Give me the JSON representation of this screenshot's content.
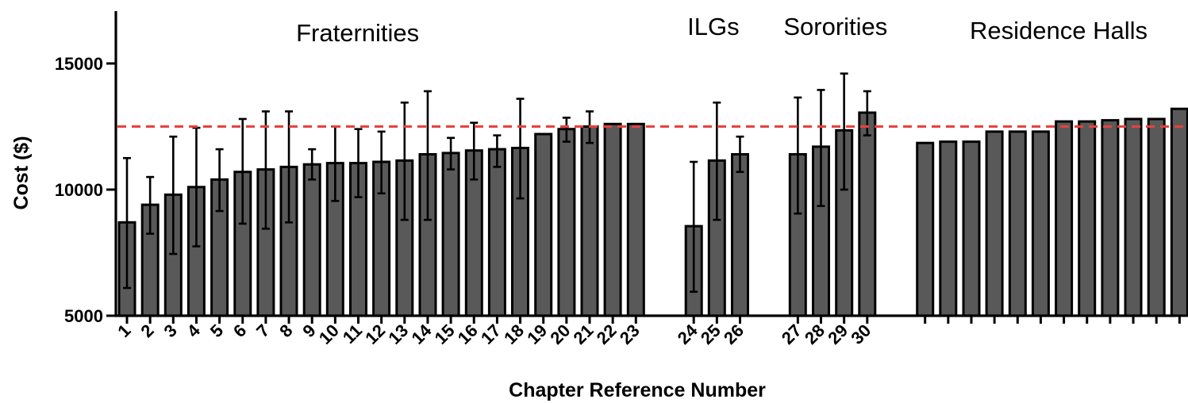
{
  "chart_data": {
    "type": "bar",
    "xlabel": "Chapter Reference Number",
    "ylabel": "Cost  ($)",
    "ylim": [
      5000,
      17000
    ],
    "yticks": [
      5000,
      10000,
      15000
    ],
    "reference_line": {
      "value": 12500,
      "color": "#e8413c",
      "style": "dashed"
    },
    "bar_color": "#595959",
    "groups": [
      {
        "name": "Fraternities",
        "bars": [
          {
            "label": "1",
            "value": 8700,
            "err_low": 6100,
            "err_high": 11250
          },
          {
            "label": "2",
            "value": 9400,
            "err_low": 8250,
            "err_high": 10500
          },
          {
            "label": "3",
            "value": 9800,
            "err_low": 7450,
            "err_high": 12100
          },
          {
            "label": "4",
            "value": 10100,
            "err_low": 7750,
            "err_high": 12450
          },
          {
            "label": "5",
            "value": 10400,
            "err_low": 9150,
            "err_high": 11600
          },
          {
            "label": "6",
            "value": 10700,
            "err_low": 8650,
            "err_high": 12800
          },
          {
            "label": "7",
            "value": 10800,
            "err_low": 8450,
            "err_high": 13100
          },
          {
            "label": "8",
            "value": 10900,
            "err_low": 8700,
            "err_high": 13100
          },
          {
            "label": "9",
            "value": 11000,
            "err_low": 10400,
            "err_high": 11600
          },
          {
            "label": "10",
            "value": 11050,
            "err_low": 9550,
            "err_high": 12500
          },
          {
            "label": "11",
            "value": 11050,
            "err_low": 9700,
            "err_high": 12400
          },
          {
            "label": "12",
            "value": 11100,
            "err_low": 9850,
            "err_high": 12300
          },
          {
            "label": "13",
            "value": 11150,
            "err_low": 8800,
            "err_high": 13450
          },
          {
            "label": "14",
            "value": 11400,
            "err_low": 8800,
            "err_high": 13900
          },
          {
            "label": "15",
            "value": 11450,
            "err_low": 10800,
            "err_high": 12050
          },
          {
            "label": "16",
            "value": 11550,
            "err_low": 10400,
            "err_high": 12650
          },
          {
            "label": "17",
            "value": 11600,
            "err_low": 10900,
            "err_high": 12150
          },
          {
            "label": "18",
            "value": 11650,
            "err_low": 9650,
            "err_high": 13600
          },
          {
            "label": "19",
            "value": 12200,
            "err_low": null,
            "err_high": null
          },
          {
            "label": "20",
            "value": 12400,
            "err_low": 11900,
            "err_high": 12850
          },
          {
            "label": "21",
            "value": 12500,
            "err_low": 11850,
            "err_high": 13100
          },
          {
            "label": "22",
            "value": 12600,
            "err_low": null,
            "err_high": null
          },
          {
            "label": "23",
            "value": 12600,
            "err_low": null,
            "err_high": null
          }
        ]
      },
      {
        "name": "ILGs",
        "bars": [
          {
            "label": "24",
            "value": 8550,
            "err_low": 5950,
            "err_high": 11100
          },
          {
            "label": "25",
            "value": 11150,
            "err_low": 8800,
            "err_high": 13450
          },
          {
            "label": "26",
            "value": 11400,
            "err_low": 10700,
            "err_high": 12100
          }
        ]
      },
      {
        "name": "Sororities",
        "bars": [
          {
            "label": "27",
            "value": 11400,
            "err_low": 9050,
            "err_high": 13650
          },
          {
            "label": "28",
            "value": 11700,
            "err_low": 9350,
            "err_high": 13950
          },
          {
            "label": "29",
            "value": 12350,
            "err_low": 10000,
            "err_high": 14600
          },
          {
            "label": "30",
            "value": 13050,
            "err_low": 12150,
            "err_high": 13900
          }
        ]
      },
      {
        "name": "Residence Halls",
        "bars": [
          {
            "label": "",
            "value": 11850,
            "err_low": null,
            "err_high": null
          },
          {
            "label": "",
            "value": 11900,
            "err_low": null,
            "err_high": null
          },
          {
            "label": "",
            "value": 11900,
            "err_low": null,
            "err_high": null
          },
          {
            "label": "",
            "value": 12300,
            "err_low": null,
            "err_high": null
          },
          {
            "label": "",
            "value": 12300,
            "err_low": null,
            "err_high": null
          },
          {
            "label": "",
            "value": 12300,
            "err_low": null,
            "err_high": null
          },
          {
            "label": "",
            "value": 12700,
            "err_low": null,
            "err_high": null
          },
          {
            "label": "",
            "value": 12700,
            "err_low": null,
            "err_high": null
          },
          {
            "label": "",
            "value": 12750,
            "err_low": null,
            "err_high": null
          },
          {
            "label": "",
            "value": 12800,
            "err_low": null,
            "err_high": null
          },
          {
            "label": "",
            "value": 12800,
            "err_low": null,
            "err_high": null
          },
          {
            "label": "",
            "value": 13200,
            "err_low": null,
            "err_high": null
          }
        ]
      }
    ]
  }
}
